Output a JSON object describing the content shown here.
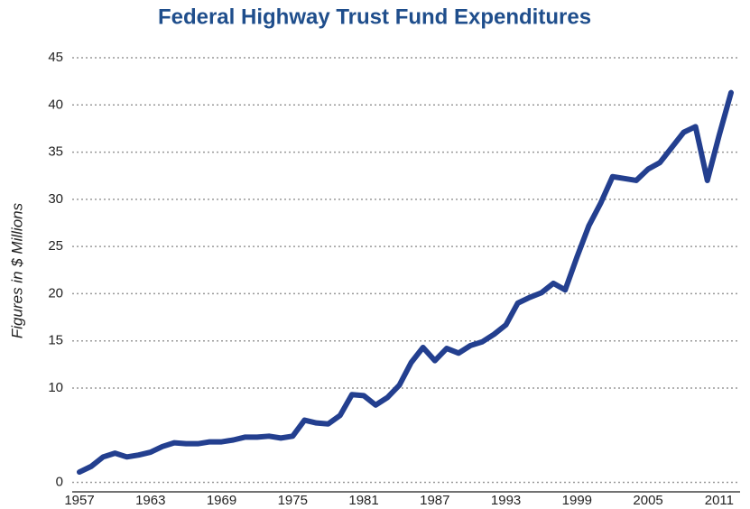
{
  "chart_data": {
    "type": "line",
    "title": "Federal Highway Trust Fund Expenditures",
    "y_label": "Figures in $ Millions",
    "x": [
      1957,
      1958,
      1959,
      1960,
      1961,
      1962,
      1963,
      1964,
      1965,
      1966,
      1967,
      1968,
      1969,
      1970,
      1971,
      1972,
      1973,
      1974,
      1975,
      1976,
      1977,
      1978,
      1979,
      1980,
      1981,
      1982,
      1983,
      1984,
      1985,
      1986,
      1987,
      1988,
      1989,
      1990,
      1991,
      1992,
      1993,
      1994,
      1995,
      1996,
      1997,
      1998,
      1999,
      2000,
      2001,
      2002,
      2003,
      2004,
      2005,
      2006,
      2007,
      2008,
      2009,
      2010,
      2011,
      2012
    ],
    "series": [
      {
        "name": "Expenditures",
        "color": "#233f8f",
        "values": [
          1.1,
          1.7,
          2.7,
          3.1,
          2.7,
          2.9,
          3.2,
          3.8,
          4.2,
          4.1,
          4.1,
          4.3,
          4.3,
          4.5,
          4.8,
          4.8,
          4.9,
          4.7,
          4.9,
          6.6,
          6.3,
          6.2,
          7.1,
          9.3,
          9.2,
          8.2,
          9.0,
          10.3,
          12.7,
          14.3,
          12.9,
          14.2,
          13.7,
          14.5,
          14.9,
          15.7,
          16.7,
          19.0,
          19.6,
          20.1,
          21.1,
          20.4,
          23.9,
          27.2,
          29.6,
          32.4,
          32.2,
          32.0,
          33.2,
          33.9,
          35.5,
          37.1,
          37.7,
          32.0,
          36.8,
          41.3
        ]
      }
    ],
    "xlim": [
      1957,
      2012
    ],
    "xticks": [
      1957,
      1963,
      1969,
      1975,
      1981,
      1987,
      1993,
      1999,
      2005,
      2011
    ],
    "ylim": [
      -1,
      45
    ],
    "yticks": [
      0,
      10,
      15,
      20,
      25,
      30,
      35,
      40,
      45
    ],
    "grid": true
  }
}
